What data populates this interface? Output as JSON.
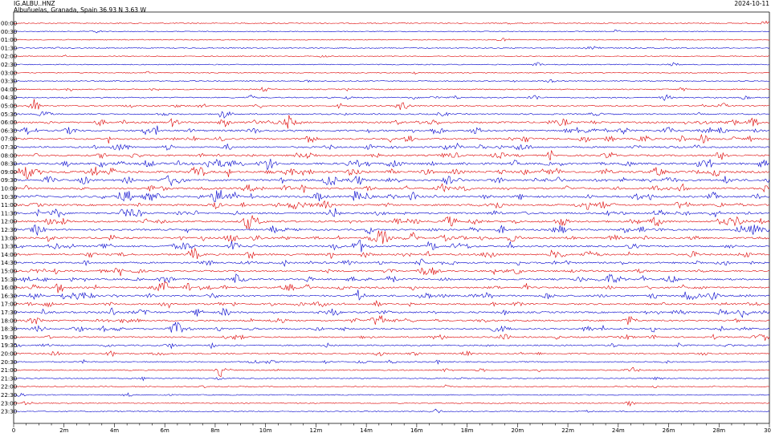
{
  "header": {
    "station": "IG.ALBU..HNZ",
    "location": "Albuñuelas, Granada, Spain  36.93 N 3.63 W",
    "date": "2024-10-11"
  },
  "chart_data": {
    "type": "seismogram-helicorder",
    "colors": {
      "red_trace": "#dd0000",
      "blue_trace": "#0000cc",
      "axis": "#000000"
    },
    "row_interval_minutes": 30,
    "x_axis": {
      "range_minutes": [
        0,
        30
      ],
      "tick_labels": [
        "0",
        "2m",
        "4m",
        "6m",
        "8m",
        "10m",
        "12m",
        "14m",
        "16m",
        "18m",
        "20m",
        "22m",
        "24m",
        "26m",
        "28m",
        "30"
      ]
    },
    "rows": [
      {
        "label": "00:00",
        "color": "red",
        "activity": 0.05
      },
      {
        "label": "00:30",
        "color": "blue",
        "activity": 0.06
      },
      {
        "label": "01:00",
        "color": "red",
        "activity": 0.04
      },
      {
        "label": "01:30",
        "color": "blue",
        "activity": 0.05
      },
      {
        "label": "02:00",
        "color": "red",
        "activity": 0.04
      },
      {
        "label": "02:30",
        "color": "blue",
        "activity": 0.06
      },
      {
        "label": "03:00",
        "color": "red",
        "activity": 0.05
      },
      {
        "label": "03:30",
        "color": "blue",
        "activity": 0.08
      },
      {
        "label": "04:00",
        "color": "red",
        "activity": 0.15
      },
      {
        "label": "04:30",
        "color": "blue",
        "activity": 0.2
      },
      {
        "label": "05:00",
        "color": "red",
        "activity": 0.3
      },
      {
        "label": "05:30",
        "color": "blue",
        "activity": 0.25
      },
      {
        "label": "06:00",
        "color": "red",
        "activity": 0.55
      },
      {
        "label": "06:30",
        "color": "blue",
        "activity": 0.6
      },
      {
        "label": "07:00",
        "color": "red",
        "activity": 0.5
      },
      {
        "label": "07:30",
        "color": "blue",
        "activity": 0.45
      },
      {
        "label": "08:00",
        "color": "red",
        "activity": 0.55
      },
      {
        "label": "08:30",
        "color": "blue",
        "activity": 0.75
      },
      {
        "label": "09:00",
        "color": "red",
        "activity": 0.8
      },
      {
        "label": "09:30",
        "color": "blue",
        "activity": 0.75
      },
      {
        "label": "10:00",
        "color": "red",
        "activity": 0.6
      },
      {
        "label": "10:30",
        "color": "blue",
        "activity": 0.65
      },
      {
        "label": "11:00",
        "color": "red",
        "activity": 0.6
      },
      {
        "label": "11:30",
        "color": "blue",
        "activity": 0.6
      },
      {
        "label": "12:00",
        "color": "red",
        "activity": 0.65
      },
      {
        "label": "12:30",
        "color": "blue",
        "activity": 0.55
      },
      {
        "label": "13:00",
        "color": "red",
        "activity": 0.6
      },
      {
        "label": "13:30",
        "color": "blue",
        "activity": 0.55
      },
      {
        "label": "14:00",
        "color": "red",
        "activity": 0.55
      },
      {
        "label": "14:30",
        "color": "blue",
        "activity": 0.5
      },
      {
        "label": "15:00",
        "color": "red",
        "activity": 0.5
      },
      {
        "label": "15:30",
        "color": "blue",
        "activity": 0.55
      },
      {
        "label": "16:00",
        "color": "red",
        "activity": 0.5
      },
      {
        "label": "16:30",
        "color": "blue",
        "activity": 0.55
      },
      {
        "label": "17:00",
        "color": "red",
        "activity": 0.5
      },
      {
        "label": "17:30",
        "color": "blue",
        "activity": 0.55
      },
      {
        "label": "18:00",
        "color": "red",
        "activity": 0.45
      },
      {
        "label": "18:30",
        "color": "blue",
        "activity": 0.45
      },
      {
        "label": "19:00",
        "color": "red",
        "activity": 0.35
      },
      {
        "label": "19:30",
        "color": "blue",
        "activity": 0.3
      },
      {
        "label": "20:00",
        "color": "red",
        "activity": 0.25
      },
      {
        "label": "20:30",
        "color": "blue",
        "activity": 0.2
      },
      {
        "label": "21:00",
        "color": "red",
        "activity": 0.15
      },
      {
        "label": "21:30",
        "color": "blue",
        "activity": 0.1
      },
      {
        "label": "22:00",
        "color": "red",
        "activity": 0.1
      },
      {
        "label": "22:30",
        "color": "blue",
        "activity": 0.08
      },
      {
        "label": "23:00",
        "color": "red",
        "activity": 0.05
      },
      {
        "label": "23:30",
        "color": "blue",
        "activity": 0.05
      }
    ]
  }
}
